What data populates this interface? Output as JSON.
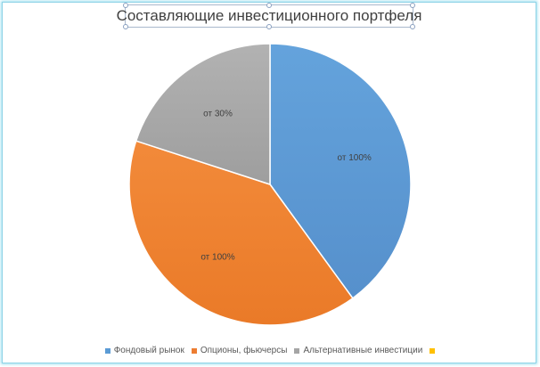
{
  "chart_data": {
    "type": "pie",
    "title": "Составляющие инвестиционного портфеля",
    "slices": [
      {
        "name": "Фондовый рынок",
        "value": 40,
        "label": "от 100%",
        "color": "#5b9bd5"
      },
      {
        "name": "Опционы, фьючерсы",
        "value": 40,
        "label": "от 100%",
        "color": "#ed7d31"
      },
      {
        "name": "Альтернативные инвестиции",
        "value": 20,
        "label": "от 30%",
        "color": "#a5a5a5"
      },
      {
        "name": "",
        "value": 0,
        "label": "",
        "color": "#ffc000"
      }
    ],
    "legend_position": "bottom",
    "start_angle_deg": 0,
    "direction": "clockwise"
  }
}
